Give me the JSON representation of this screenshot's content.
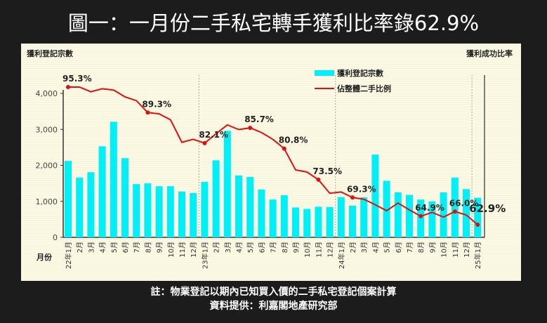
{
  "title": "圖一：一月份二手私宅轉手獲利比率錄62.9%",
  "footnote": "註：物業登記以期內已知買入價的二手私宅登記個案計算",
  "source": "資料提供：利嘉閣地產研究部",
  "chart_data": {
    "type": "bar+line",
    "ylabel_left": "獲利登記宗數",
    "ylabel_right": "獲利成功比率",
    "xlabel": "月份",
    "ylim": [
      0,
      4000
    ],
    "yticks": [
      "0",
      "1,000",
      "2,000",
      "3,000",
      "4,000"
    ],
    "categories": [
      "22年1月",
      "2月",
      "3月",
      "4月",
      "5月",
      "6月",
      "7月",
      "8月",
      "9月",
      "10月",
      "11月",
      "12月",
      "23年1月",
      "2月",
      "3月",
      "4月",
      "5月",
      "6月",
      "7月",
      "8月",
      "9月",
      "10月",
      "11月",
      "12月",
      "24年1月",
      "2月",
      "3月",
      "4月",
      "5月",
      "6月",
      "7月",
      "8月",
      "9月",
      "10月",
      "11月",
      "12月",
      "25年1月"
    ],
    "series": [
      {
        "name": "獲利登記宗數",
        "type": "bar",
        "color": "#00f0f8",
        "values": [
          2125,
          1660,
          1810,
          2530,
          3210,
          2200,
          1480,
          1500,
          1420,
          1420,
          1270,
          1230,
          1540,
          2140,
          2960,
          1720,
          1680,
          1330,
          1050,
          1170,
          830,
          790,
          850,
          840,
          1120,
          880,
          1110,
          2300,
          1570,
          1250,
          1180,
          1050,
          1000,
          1250,
          1660,
          1340,
          1100
        ]
      },
      {
        "name": "佔整體二手比例",
        "type": "line",
        "color": "#e01010",
        "values": [
          95.3,
          95.3,
          94.2,
          94.9,
          94.6,
          93.0,
          92.1,
          89.3,
          89.0,
          87.6,
          82.3,
          83.0,
          82.1,
          84.3,
          86.4,
          85.3,
          85.7,
          84.6,
          83.0,
          80.8,
          75.8,
          75.3,
          73.5,
          70.3,
          70.6,
          69.3,
          68.9,
          67.6,
          66.2,
          68.0,
          66.4,
          64.9,
          65.8,
          64.7,
          66.0,
          65.2,
          62.9
        ]
      }
    ],
    "annotations": [
      {
        "index": 0,
        "label": "95.3%"
      },
      {
        "index": 7,
        "label": "89.3%"
      },
      {
        "index": 12,
        "label": "82.1%"
      },
      {
        "index": 16,
        "label": "85.7%"
      },
      {
        "index": 19,
        "label": "80.8%"
      },
      {
        "index": 22,
        "label": "73.5%"
      },
      {
        "index": 25,
        "label": "69.3%"
      },
      {
        "index": 31,
        "label": "64.9%"
      },
      {
        "index": 34,
        "label": "66.0%"
      },
      {
        "index": 36,
        "label": "62.9%"
      }
    ]
  }
}
